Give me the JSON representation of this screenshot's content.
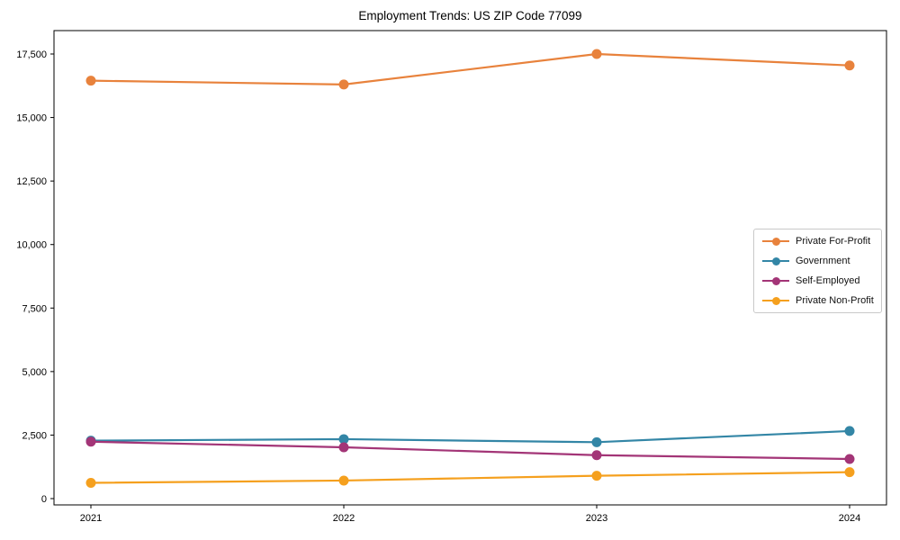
{
  "chart_data": {
    "type": "line",
    "title": "Employment Trends: US ZIP Code 77099",
    "xlabel": "",
    "ylabel": "",
    "x": [
      "2021",
      "2022",
      "2023",
      "2024"
    ],
    "ylim": [
      0,
      17500
    ],
    "yticks": [
      0,
      2500,
      5000,
      7500,
      10000,
      12500,
      15000,
      17500
    ],
    "grid": false,
    "legend_position": "center-right",
    "series": [
      {
        "name": "Private For-Profit",
        "color": "#e8823c",
        "values": [
          16450,
          16300,
          17500,
          17050
        ]
      },
      {
        "name": "Government",
        "color": "#3386a6",
        "values": [
          2280,
          2340,
          2220,
          2660
        ]
      },
      {
        "name": "Self-Employed",
        "color": "#a33577",
        "values": [
          2240,
          2020,
          1710,
          1560
        ]
      },
      {
        "name": "Private Non-Profit",
        "color": "#f5a01e",
        "values": [
          620,
          710,
          900,
          1040
        ]
      }
    ]
  }
}
